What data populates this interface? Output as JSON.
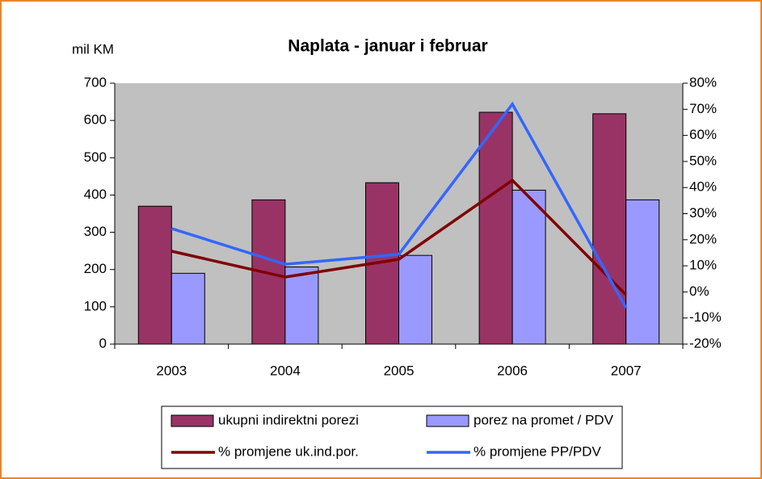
{
  "chart_data": {
    "type": "bar",
    "title": "Naplata - januar i februar",
    "y_label": "mil KM",
    "categories": [
      "2003",
      "2004",
      "2005",
      "2006",
      "2007"
    ],
    "series": [
      {
        "name": "ukupni indirektni porezi",
        "type": "bar",
        "color": "#993366",
        "values": [
          370,
          387,
          433,
          622,
          618
        ]
      },
      {
        "name": "porez na promet / PDV",
        "type": "bar",
        "color": "#9999ff",
        "values": [
          190,
          207,
          238,
          413,
          387
        ]
      },
      {
        "name": "% promjene uk.ind.por.",
        "type": "line",
        "axis": "y2",
        "color": "#800000",
        "values": [
          15.6,
          5.7,
          12.5,
          42.8,
          -1.1
        ]
      },
      {
        "name": "% promjene PP/PDV",
        "type": "line",
        "axis": "y2",
        "color": "#3366ff",
        "values": [
          24.3,
          10.6,
          14.4,
          72,
          -6.1
        ]
      }
    ],
    "ylim": [
      0,
      700
    ],
    "yticks": [
      0,
      100,
      200,
      300,
      400,
      500,
      600,
      700
    ],
    "y2lim": [
      -20,
      80
    ],
    "y2ticks": [
      {
        "value": -20,
        "label": "-20%"
      },
      {
        "value": -10,
        "label": "-10%"
      },
      {
        "value": 0,
        "label": "0%"
      },
      {
        "value": 10,
        "label": "10%"
      },
      {
        "value": 20,
        "label": "20%"
      },
      {
        "value": 30,
        "label": "30%"
      },
      {
        "value": 40,
        "label": "40%"
      },
      {
        "value": 50,
        "label": "50%"
      },
      {
        "value": 60,
        "label": "60%"
      },
      {
        "value": 70,
        "label": "70%"
      },
      {
        "value": 80,
        "label": "80%"
      }
    ],
    "plot_background": "#c0c0c0",
    "legend": "bottom"
  }
}
